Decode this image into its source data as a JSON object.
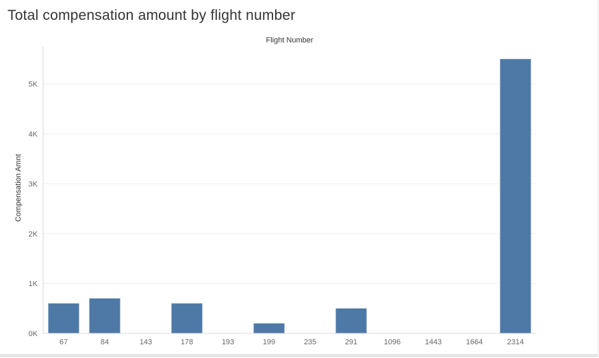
{
  "chart_data": {
    "type": "bar",
    "title": "Total compensation amount by flight number",
    "xlabel": "Flight Number",
    "ylabel": "Compensation Amnt",
    "categories": [
      "67",
      "84",
      "143",
      "178",
      "193",
      "199",
      "235",
      "291",
      "1096",
      "1443",
      "1664",
      "2314"
    ],
    "values": [
      600,
      700,
      0,
      600,
      0,
      200,
      0,
      500,
      0,
      0,
      0,
      5500
    ],
    "ylim": [
      0,
      5750
    ],
    "yticks": [
      0,
      1000,
      2000,
      3000,
      4000,
      5000
    ],
    "ytick_labels": [
      "0K",
      "1K",
      "2K",
      "3K",
      "4K",
      "5K"
    ],
    "grid": true,
    "x_label_position": "top",
    "bar_color": "#4e79a7"
  }
}
